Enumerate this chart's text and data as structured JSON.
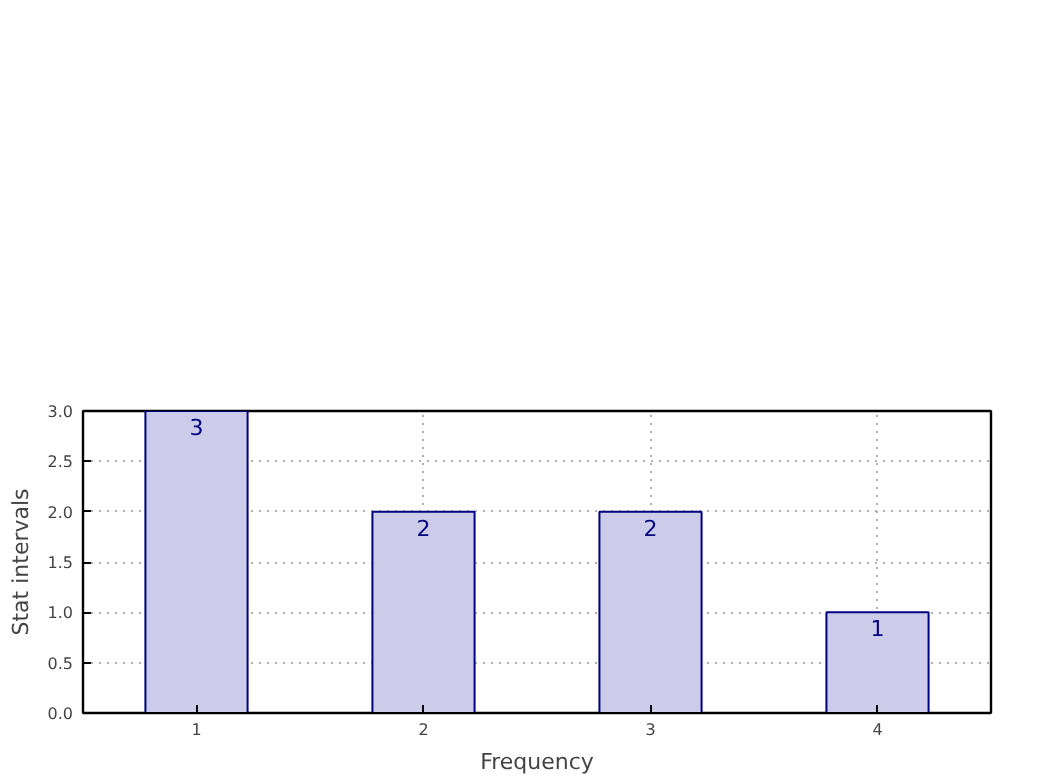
{
  "chart_data": {
    "type": "bar",
    "xlabel": "Frequency",
    "ylabel": "Stat intervals",
    "x": [
      1,
      2,
      3,
      4
    ],
    "values": [
      3,
      2,
      2,
      1
    ],
    "color": "#ccccea",
    "xlim": [
      0.5,
      4.5
    ],
    "xticks": [
      1,
      2,
      3,
      4
    ],
    "ylim": [
      0,
      3
    ],
    "yticks": [
      {
        "value": 0,
        "label": "0.0"
      },
      {
        "value": 0.5,
        "label": "0.5"
      },
      {
        "value": 1,
        "label": "1.0"
      },
      {
        "value": 1.5,
        "label": "1.5"
      },
      {
        "value": 2,
        "label": "2.0"
      },
      {
        "value": 2.5,
        "label": "2.5"
      },
      {
        "value": 3,
        "label": "3.0"
      }
    ],
    "grid": true,
    "data_labels": true
  }
}
